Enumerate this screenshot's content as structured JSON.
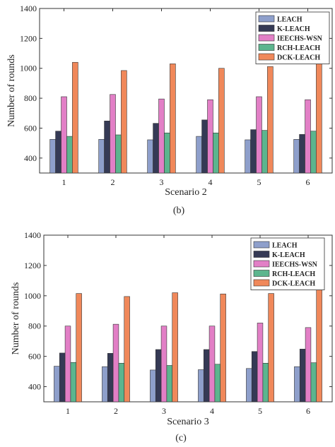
{
  "colors": {
    "LEACH": "#8e9fcb",
    "K-LEACH": "#353a55",
    "IEECHS-WSN": "#e27fc6",
    "RCH-LEACH": "#5cb58e",
    "DCK-LEACH": "#f0885a"
  },
  "chart_data": [
    {
      "type": "bar",
      "caption": "(b)",
      "xlabel": "Scenario 2",
      "ylabel": "Number of rounds",
      "ylim": [
        300,
        1400
      ],
      "yticks": [
        400,
        600,
        800,
        1000,
        1200,
        1400
      ],
      "categories": [
        "1",
        "2",
        "3",
        "4",
        "5",
        "6"
      ],
      "legend_position": "top-right",
      "series": [
        {
          "name": "LEACH",
          "values": [
            525,
            525,
            522,
            545,
            522,
            525
          ]
        },
        {
          "name": "K-LEACH",
          "values": [
            580,
            648,
            632,
            655,
            590,
            558
          ]
        },
        {
          "name": "IEECHS-WSN",
          "values": [
            810,
            825,
            795,
            790,
            810,
            790
          ]
        },
        {
          "name": "RCH-LEACH",
          "values": [
            545,
            555,
            568,
            568,
            585,
            580
          ]
        },
        {
          "name": "DCK-LEACH",
          "values": [
            1040,
            985,
            1030,
            1000,
            1012,
            1035
          ]
        }
      ]
    },
    {
      "type": "bar",
      "caption": "(c)",
      "xlabel": "Scenario 3",
      "ylabel": "Number of rounds",
      "ylim": [
        300,
        1400
      ],
      "yticks": [
        400,
        600,
        800,
        1000,
        1200,
        1400
      ],
      "categories": [
        "1",
        "2",
        "3",
        "4",
        "5",
        "6"
      ],
      "legend_position": "top-right",
      "series": [
        {
          "name": "LEACH",
          "values": [
            535,
            532,
            510,
            512,
            520,
            532
          ]
        },
        {
          "name": "K-LEACH",
          "values": [
            622,
            620,
            645,
            645,
            632,
            648
          ]
        },
        {
          "name": "IEECHS-WSN",
          "values": [
            800,
            812,
            800,
            800,
            820,
            790
          ]
        },
        {
          "name": "RCH-LEACH",
          "values": [
            560,
            555,
            540,
            548,
            555,
            558
          ]
        },
        {
          "name": "DCK-LEACH",
          "values": [
            1015,
            995,
            1020,
            1012,
            1015,
            1045
          ]
        }
      ]
    }
  ]
}
